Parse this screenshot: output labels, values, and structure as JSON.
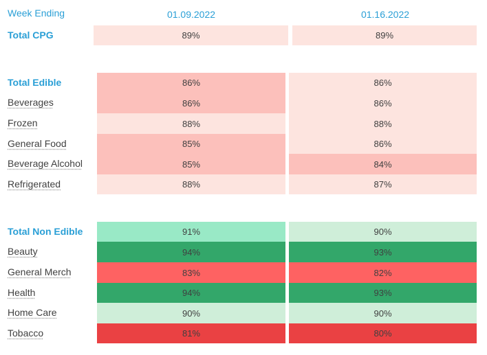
{
  "header": {
    "row_label": "Week Ending",
    "weeks": [
      "01.09.2022",
      "01.16.2022"
    ]
  },
  "chart_data": {
    "type": "table",
    "columns": [
      "01.09.2022",
      "01.16.2022"
    ],
    "groups": [
      {
        "name": "Total CPG",
        "rows": [
          {
            "label": "Total CPG",
            "total": true,
            "values": [
              "89%",
              "89%"
            ],
            "colors": [
              "#fde4df",
              "#fde4df"
            ]
          }
        ]
      },
      {
        "name": "Total Edible",
        "rows": [
          {
            "label": "Total Edible",
            "total": true,
            "values": [
              "86%",
              "86%"
            ],
            "colors": [
              "#fcc0bb",
              "#fde4df"
            ]
          },
          {
            "label": "Beverages",
            "values": [
              "86%",
              "86%"
            ],
            "colors": [
              "#fcc0bb",
              "#fde4df"
            ]
          },
          {
            "label": "Frozen",
            "values": [
              "88%",
              "88%"
            ],
            "colors": [
              "#fde4df",
              "#fde4df"
            ]
          },
          {
            "label": "General Food",
            "values": [
              "85%",
              "86%"
            ],
            "colors": [
              "#fcc0bb",
              "#fde4df"
            ]
          },
          {
            "label": "Beverage Alcohol",
            "values": [
              "85%",
              "84%"
            ],
            "colors": [
              "#fcc0bb",
              "#fcc0bb"
            ]
          },
          {
            "label": "Refrigerated",
            "values": [
              "88%",
              "87%"
            ],
            "colors": [
              "#fde4df",
              "#fde4df"
            ]
          }
        ]
      },
      {
        "name": "Total Non Edible",
        "rows": [
          {
            "label": "Total Non Edible",
            "total": true,
            "values": [
              "91%",
              "90%"
            ],
            "colors": [
              "#99e9c6",
              "#cfeed9"
            ]
          },
          {
            "label": "Beauty",
            "values": [
              "94%",
              "93%"
            ],
            "colors": [
              "#33a76a",
              "#33a76a"
            ]
          },
          {
            "label": "General Merch",
            "values": [
              "83%",
              "82%"
            ],
            "colors": [
              "#fe6262",
              "#fe6262"
            ]
          },
          {
            "label": "Health",
            "values": [
              "94%",
              "93%"
            ],
            "colors": [
              "#33a76a",
              "#33a76a"
            ]
          },
          {
            "label": "Home Care",
            "values": [
              "90%",
              "90%"
            ],
            "colors": [
              "#cfeed9",
              "#cfeed9"
            ]
          },
          {
            "label": "Tobacco",
            "values": [
              "81%",
              "80%"
            ],
            "colors": [
              "#ea4143",
              "#ea4143"
            ]
          }
        ]
      }
    ]
  }
}
